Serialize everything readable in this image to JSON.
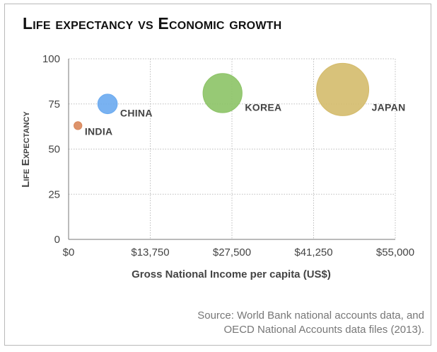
{
  "chart_data": {
    "type": "bubble",
    "title": "Life expectancy vs Economic growth",
    "xlabel": "Gross National Income per capita (US$)",
    "ylabel": "Life Expectancy",
    "xlim": [
      0,
      55000
    ],
    "ylim": [
      0,
      100
    ],
    "x_ticks": [
      0,
      13750,
      27500,
      41250,
      55000
    ],
    "x_tick_labels": [
      "$0",
      "$13,750",
      "$27,500",
      "$41,250",
      "$55,000"
    ],
    "y_ticks": [
      0,
      25,
      50,
      75,
      100
    ],
    "y_tick_labels": [
      "0",
      "25",
      "50",
      "75",
      "100"
    ],
    "grid": true,
    "series": [
      {
        "name": "INDIA",
        "x": 1570,
        "y": 63,
        "size": 1,
        "color": "#d9875b"
      },
      {
        "name": "CHINA",
        "x": 6560,
        "y": 75,
        "size": 6,
        "color": "#6aaaf0"
      },
      {
        "name": "KOREA",
        "x": 25920,
        "y": 81,
        "size": 24,
        "color": "#8cc366"
      },
      {
        "name": "JAPAN",
        "x": 46140,
        "y": 83,
        "size": 43,
        "color": "#d4bb6b"
      }
    ]
  },
  "source_lines": [
    "Source: World Bank national accounts data, and",
    "OECD National Accounts data files (2013)."
  ]
}
